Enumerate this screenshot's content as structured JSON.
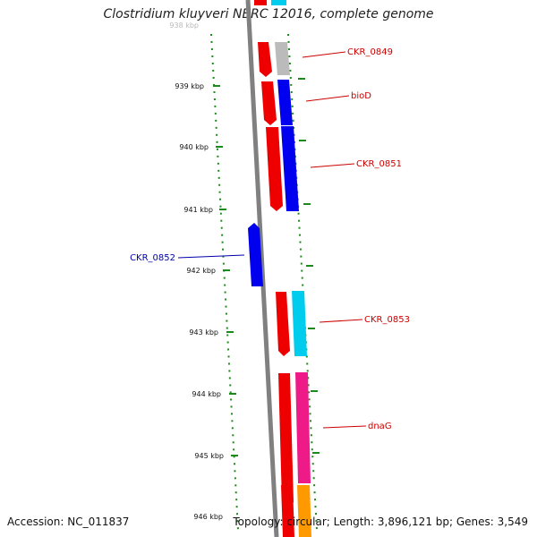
{
  "title": "Clostridium kluyveri NBRC 12016, complete genome",
  "footer": {
    "accession": "Accession: NC_011837",
    "stats": "Topology: circular; Length: 3,896,121 bp; Genes: 3,549"
  },
  "ticks": [
    "938 kbp",
    "939 kbp",
    "940 kbp",
    "941 kbp",
    "942 kbp",
    "943 kbp",
    "944 kbp",
    "945 kbp",
    "946 kbp"
  ],
  "gene_labels": [
    {
      "id": "CKR_0849",
      "text": "CKR_0849",
      "color": "#cc0000"
    },
    {
      "id": "bioD",
      "text": "bioD",
      "color": "#cc0000"
    },
    {
      "id": "CKR_0851",
      "text": "CKR_0851",
      "color": "#cc0000"
    },
    {
      "id": "CKR_0852",
      "text": "CKR_0852",
      "color": "#0000aa"
    },
    {
      "id": "CKR_0853",
      "text": "CKR_0853",
      "color": "#cc0000"
    },
    {
      "id": "dnaG",
      "text": "dnaG",
      "color": "#cc0000"
    }
  ],
  "colors": {
    "backbone": "#808080",
    "tick": "#1a8a1a",
    "red": "#ee0000",
    "blue": "#0000ee",
    "gray": "#bbbbbb",
    "cyan": "#00ccee",
    "magenta": "#ee1a88",
    "orange": "#ff9900"
  }
}
